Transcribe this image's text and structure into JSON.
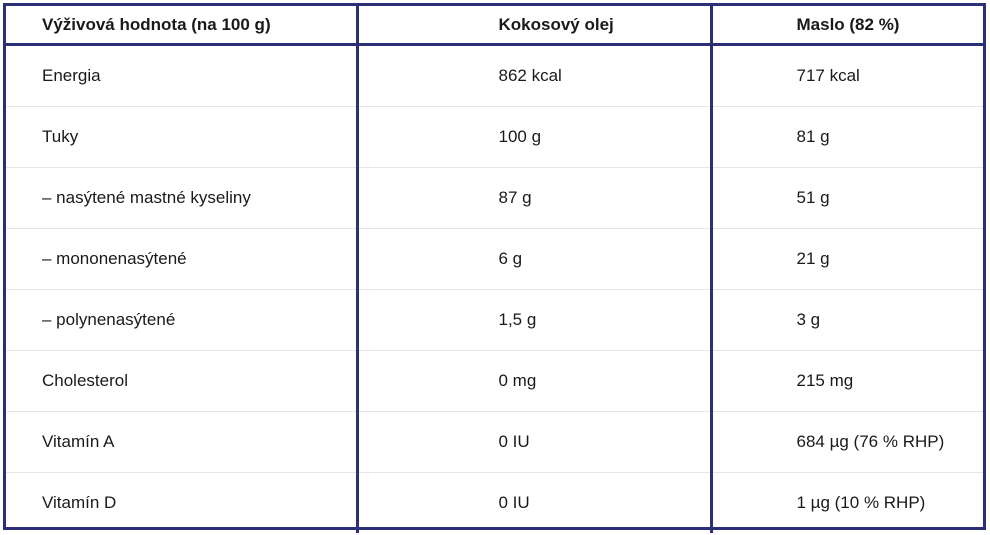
{
  "table": {
    "headers": [
      "Výživová hodnota (na 100 g)",
      "Kokosový olej",
      "Maslo (82 %)"
    ],
    "rows": [
      [
        "Energia",
        "862 kcal",
        "717 kcal"
      ],
      [
        "Tuky",
        "100 g",
        "81 g"
      ],
      [
        "– nasýtené mastné kyseliny",
        "87 g",
        "51 g"
      ],
      [
        "– mononenasýtené",
        "6 g",
        "21 g"
      ],
      [
        "– polynenasýtené",
        "1,5 g",
        "3 g"
      ],
      [
        "Cholesterol",
        "0 mg",
        "215 mg"
      ],
      [
        "Vitamín A",
        "0 IU",
        "684 µg (76 % RHP)"
      ],
      [
        "Vitamín D",
        "0 IU",
        "1 µg (10 % RHP)"
      ]
    ]
  },
  "colors": {
    "border": "#2b2f78",
    "row_divider": "#e6e6e6",
    "text": "#1a1a1a"
  }
}
